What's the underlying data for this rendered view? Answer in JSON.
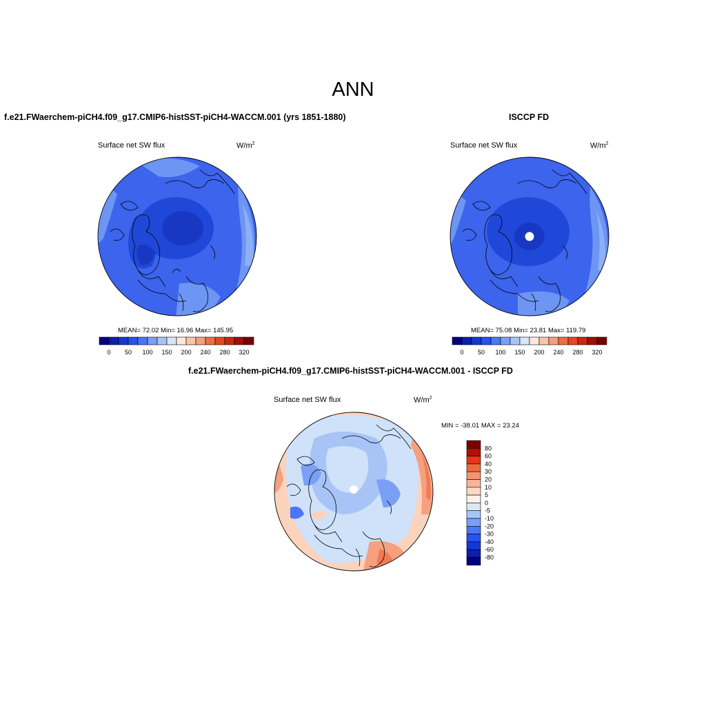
{
  "main_title": "ANN",
  "panels": [
    {
      "title": "f.e21.FWaerchem-piCH4.f09_g17.CMIP6-histSST-piCH4-WACCM.001 (yrs 1851-1880)",
      "variable": "Surface net SW flux",
      "units": "W/m",
      "units_exp": "2",
      "stats": "MEAN=  72.02  Min=  16.96  Max= 145.95"
    },
    {
      "title": "ISCCP FD",
      "variable": "Surface net SW flux",
      "units": "W/m",
      "units_exp": "2",
      "stats": "MEAN=  75.08  Min=  23.81  Max= 119.79"
    },
    {
      "title": "f.e21.FWaerchem-piCH4.f09_g17.CMIP6-histSST-piCH4-WACCM.001 - ISCCP FD",
      "variable": "Surface net SW flux",
      "units": "W/m",
      "units_exp": "2",
      "stats": "MIN = -38.01 MAX =  23.24"
    }
  ],
  "colorbar_h": {
    "ticks": [
      "0",
      "50",
      "100",
      "150",
      "200",
      "240",
      "280",
      "320"
    ],
    "colors": [
      "#03007f",
      "#0b1fa8",
      "#1538d2",
      "#2552f0",
      "#4a76f7",
      "#7a9ff5",
      "#a8c4f6",
      "#d6e6fb",
      "#fce9dc",
      "#f8c5ab",
      "#f59d7c",
      "#f06d45",
      "#e8461f",
      "#c9280f",
      "#a10f05",
      "#7a0000"
    ]
  },
  "colorbar_v": {
    "ticks": [
      "80",
      "60",
      "40",
      "30",
      "20",
      "10",
      "5",
      "0",
      "-5",
      "-10",
      "-20",
      "-30",
      "-40",
      "-60",
      "-80"
    ],
    "colors": [
      "#7a0000",
      "#b50f04",
      "#e6361a",
      "#f06a3c",
      "#f59470",
      "#f8b498",
      "#fcd9c6",
      "#fdf2ea",
      "#d9e8fb",
      "#a8c4f6",
      "#7a9ff5",
      "#4a76f7",
      "#2552f0",
      "#1538d2",
      "#0b1fa8",
      "#03007f"
    ]
  },
  "map_colors": {
    "bg1": "#3c64ec",
    "darker": "#1f47d6",
    "darkest": "#1532b8",
    "light": "#6d95f3",
    "lighter": "#8caff6",
    "diff_bg": "#cfe2fa",
    "diff_blue": "#a8c4f6",
    "diff_mid": "#7a9ff5",
    "diff_peach": "#fbd3bd",
    "diff_orange": "#f5a07e",
    "diff_red": "#ee7b55"
  }
}
